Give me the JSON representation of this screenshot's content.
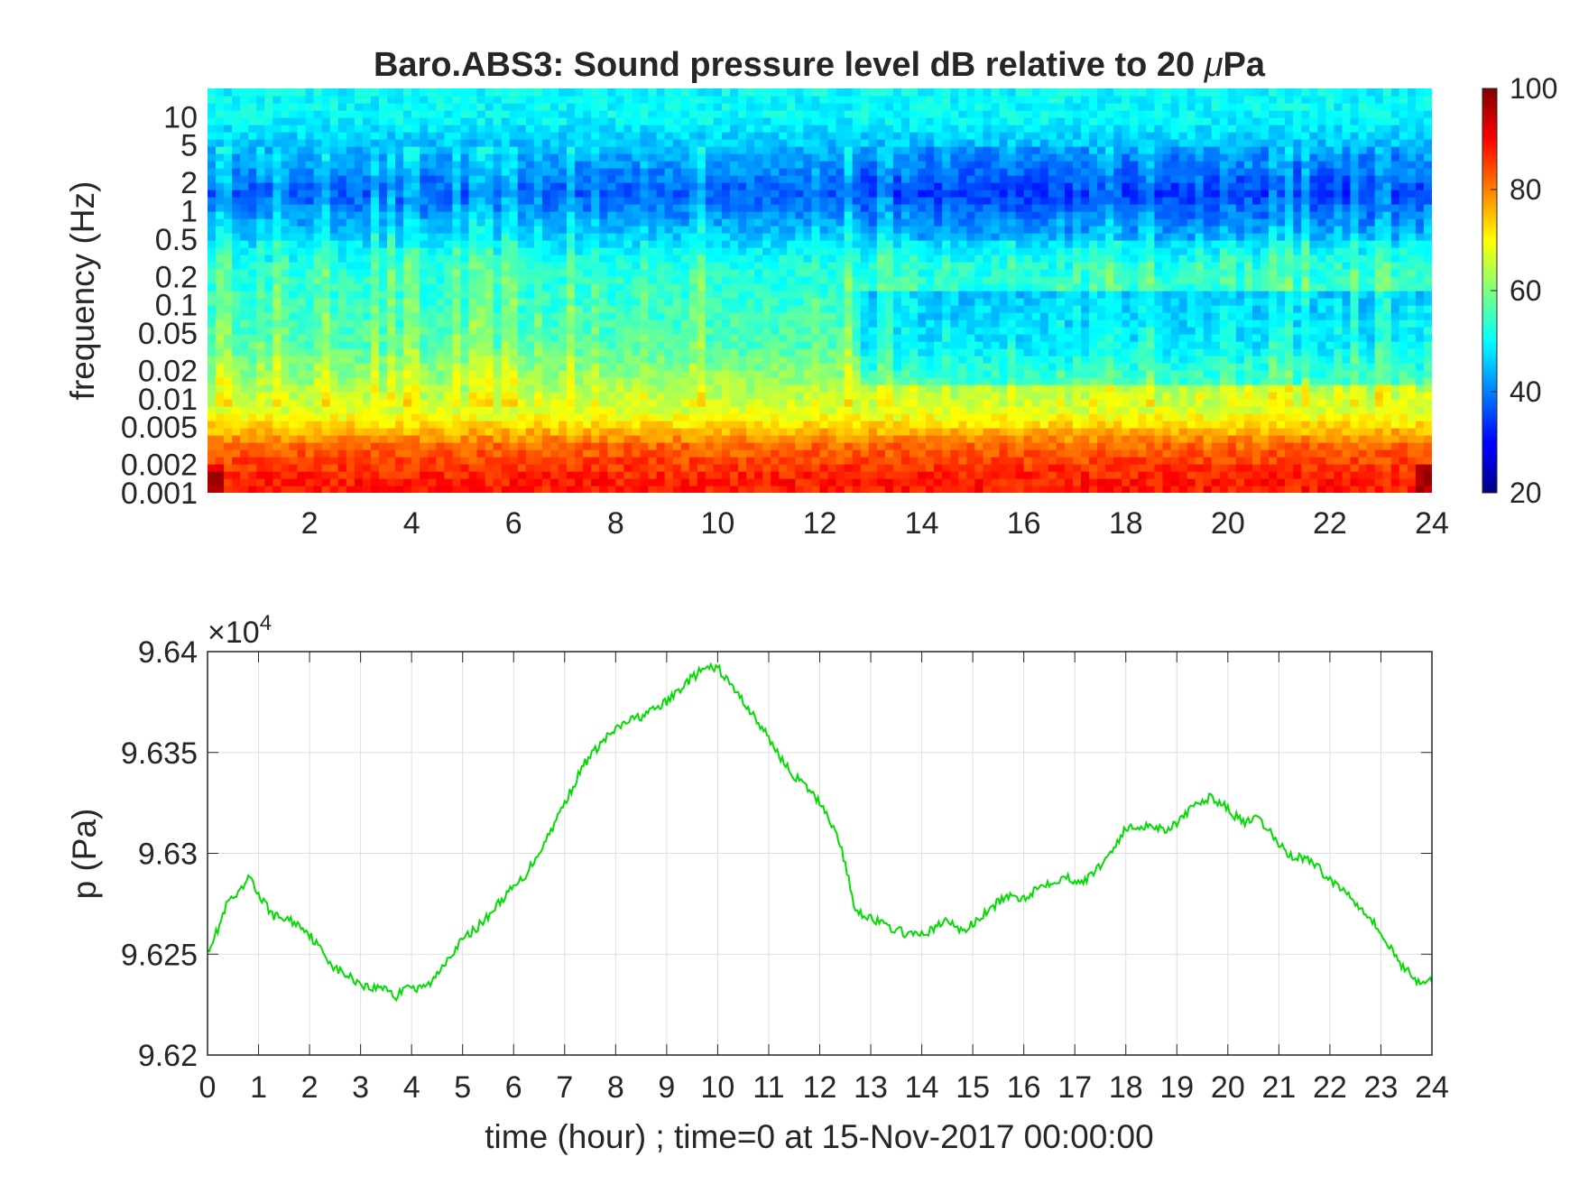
{
  "chart_data": [
    {
      "type": "heatmap",
      "title": "Baro.ABS3: Sound pressure level dB relative to 20 μPa",
      "title_main": "Baro.ABS3: Sound pressure level dB relative to 20 ",
      "title_mu": "μ",
      "title_unit": "Pa",
      "xlabel": "",
      "ylabel": "frequency (Hz)",
      "xlim": [
        0,
        24
      ],
      "ylim": [
        0.001,
        20
      ],
      "yscale": "log",
      "x_ticks": [
        2,
        4,
        6,
        8,
        10,
        12,
        14,
        16,
        18,
        20,
        22,
        24
      ],
      "y_ticks": [
        0.001,
        0.002,
        0.005,
        0.01,
        0.02,
        0.05,
        0.1,
        0.2,
        0.5,
        1,
        2,
        5,
        10
      ],
      "y_tick_labels": [
        "0.001",
        "0.002",
        "0.005",
        "0.01",
        "0.02",
        "0.05",
        "0.1",
        "0.2",
        "0.5",
        "1",
        "2",
        "5",
        "10"
      ],
      "colormap": "jet",
      "colorbar": {
        "ticks": [
          20,
          40,
          60,
          80,
          100
        ],
        "clim": [
          20,
          100
        ]
      },
      "level_bands_db": [
        {
          "f_low": 5,
          "f_high": 20,
          "level": 50
        },
        {
          "f_low": 0.5,
          "f_high": 5,
          "level": 37
        },
        {
          "f_low": 0.15,
          "f_high": 0.5,
          "level": 52
        },
        {
          "f_low": 0.01,
          "f_high": 0.15,
          "level": 56
        },
        {
          "f_low": 0.005,
          "f_high": 0.01,
          "level": 68
        },
        {
          "f_low": 0.002,
          "f_high": 0.005,
          "level": 82
        },
        {
          "f_low": 0.001,
          "f_high": 0.002,
          "level": 88
        }
      ],
      "quiet_period_hours": [
        12.8,
        24
      ],
      "grid": false
    },
    {
      "type": "line",
      "xlabel": "time (hour) ; time=0 at 15-Nov-2017 00:00:00",
      "ylabel": "p (Pa)",
      "exponent_label": "×10",
      "exponent_power": "4",
      "xlim": [
        0,
        24
      ],
      "ylim": [
        9.62,
        9.64
      ],
      "x_ticks": [
        0,
        1,
        2,
        3,
        4,
        5,
        6,
        7,
        8,
        9,
        10,
        11,
        12,
        13,
        14,
        15,
        16,
        17,
        18,
        19,
        20,
        21,
        22,
        23,
        24
      ],
      "y_ticks": [
        9.62,
        9.625,
        9.63,
        9.635,
        9.64
      ],
      "y_tick_labels": [
        "9.62",
        "9.625",
        "9.63",
        "9.635",
        "9.64"
      ],
      "grid": true,
      "line_color": "#00dd00",
      "x": [
        0,
        0.2,
        0.4,
        0.6,
        0.85,
        1.0,
        1.3,
        1.6,
        1.9,
        2.2,
        2.5,
        2.9,
        3.2,
        3.5,
        3.7,
        3.9,
        4.1,
        4.4,
        4.7,
        5.0,
        5.4,
        5.8,
        6.2,
        6.6,
        7.0,
        7.4,
        7.8,
        8.2,
        8.6,
        9.0,
        9.4,
        9.7,
        10.0,
        10.3,
        10.6,
        11.0,
        11.4,
        11.8,
        12.1,
        12.4,
        12.7,
        13.0,
        13.3,
        13.6,
        13.9,
        14.2,
        14.5,
        14.8,
        15.2,
        15.6,
        16.0,
        16.4,
        16.8,
        17.2,
        17.6,
        18.0,
        18.4,
        18.8,
        19.1,
        19.4,
        19.7,
        20.0,
        20.3,
        20.6,
        20.9,
        21.2,
        21.6,
        22.0,
        22.4,
        22.8,
        23.1,
        23.4,
        23.7,
        24.0
      ],
      "y": [
        9.6252,
        9.6262,
        9.6276,
        9.6279,
        9.6289,
        9.6279,
        9.6269,
        9.6267,
        9.6263,
        9.6253,
        9.6243,
        9.6237,
        9.6233,
        9.6234,
        9.6228,
        9.6236,
        9.6232,
        9.6236,
        9.6248,
        9.6257,
        9.6266,
        9.6278,
        9.6288,
        9.6305,
        9.6325,
        9.6345,
        9.6357,
        9.6365,
        9.6369,
        9.6375,
        9.6385,
        9.6391,
        9.6392,
        9.6382,
        9.6372,
        9.6357,
        9.6341,
        9.6331,
        9.6322,
        9.6305,
        9.6272,
        9.6268,
        9.6264,
        9.6261,
        9.6259,
        9.6262,
        9.6267,
        9.6261,
        9.6269,
        9.6278,
        9.6278,
        9.6285,
        9.6288,
        9.6286,
        9.6297,
        9.6312,
        9.6314,
        9.6312,
        9.6317,
        9.6325,
        9.6328,
        9.6322,
        9.6315,
        9.6317,
        9.6308,
        9.6299,
        9.6297,
        9.6287,
        9.6279,
        9.6268,
        9.6256,
        9.6245,
        9.6237,
        9.6236
      ]
    }
  ]
}
